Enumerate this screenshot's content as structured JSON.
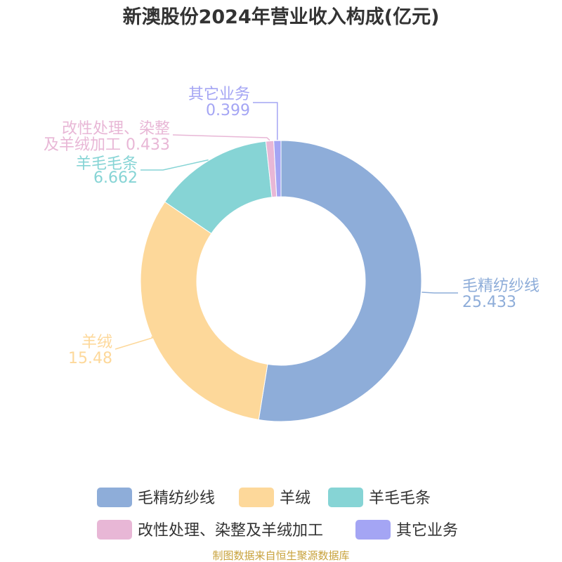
{
  "chart_data": {
    "type": "pie",
    "variant": "donut",
    "title": "新澳股份2024年营业收入构成(亿元)",
    "categories": [
      "毛精纺纱线",
      "羊绒",
      "羊毛毛条",
      "改性处理、染整及羊绒加工",
      "其它业务"
    ],
    "values": [
      25.433,
      15.48,
      6.662,
      0.433,
      0.399
    ],
    "value_labels": [
      "25.433",
      "15.48",
      "6.662",
      "0.433",
      "0.399"
    ],
    "slice_labels": [
      {
        "lines": [
          "毛精纺纱线",
          "25.433"
        ]
      },
      {
        "lines": [
          "羊绒",
          "15.48"
        ]
      },
      {
        "lines": [
          "羊毛毛条",
          "6.662"
        ]
      },
      {
        "lines": [
          "改性处理、染整",
          "及羊绒加工 0.433"
        ]
      },
      {
        "lines": [
          "其它业务",
          "0.399"
        ]
      }
    ],
    "colors": [
      "#8eadd9",
      "#fdd89a",
      "#86d4d5",
      "#e8b7d6",
      "#a4a5f4"
    ],
    "legend_position": "bottom",
    "source": "制图数据来自恒生聚源数据库"
  }
}
